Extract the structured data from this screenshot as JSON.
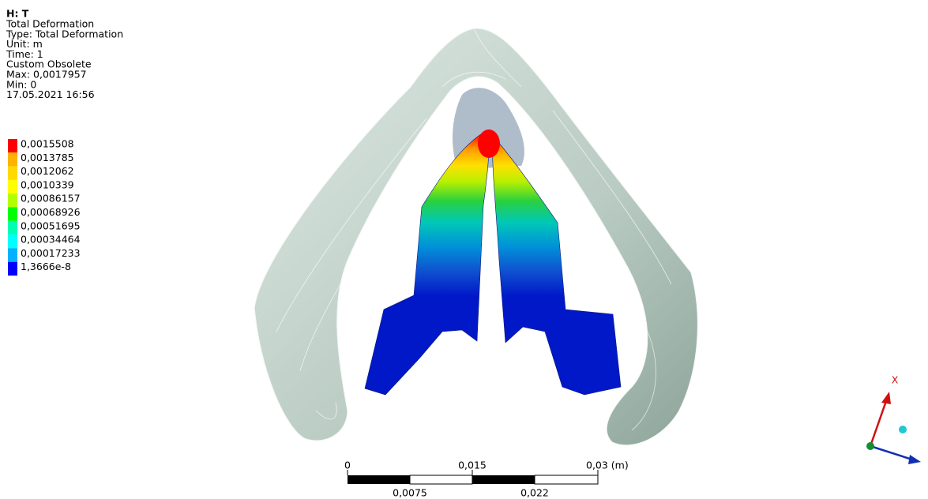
{
  "header": {
    "title": "H: T",
    "lines": [
      "Total Deformation",
      "Type: Total Deformation",
      "Unit: m",
      "Time: 1",
      "Custom Obsolete",
      "Max: 0,0017957",
      "Min: 0",
      "17.05.2021 16:56"
    ]
  },
  "legend": {
    "labels": [
      "0,0015508",
      "0,0013785",
      "0,0012062",
      "0,0010339",
      "0,00086157",
      "0,00068926",
      "0,00051695",
      "0,00034464",
      "0,00017233",
      "1,3666e-8"
    ],
    "colors": [
      "#ff0000",
      "#ffb200",
      "#ffd900",
      "#ffff00",
      "#b2ff00",
      "#00ff00",
      "#00ffb2",
      "#00ffff",
      "#00b2ff",
      "#0000ff"
    ]
  },
  "scale_bar": {
    "top_labels": [
      "0",
      "0,015",
      "0,03 (m)"
    ],
    "bottom_labels": [
      "0,0075",
      "0,022"
    ]
  },
  "triad": {
    "axis_label": "X"
  }
}
